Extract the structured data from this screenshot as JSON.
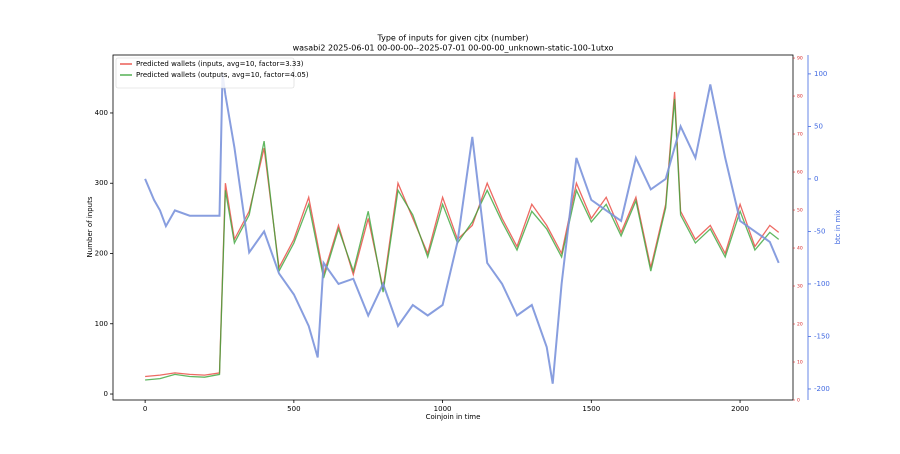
{
  "chart_data": {
    "type": "line",
    "title": "Type of inputs for given cjtx (number)",
    "subtitle": "wasabi2 2025-06-01 00-00-00--2025-07-01 00-00-00_unknown-static-100-1utxo",
    "x_label": "Coinjoin in time",
    "y_label": "Number of inputs",
    "y2_label": "btc in mix",
    "xlim": [
      -108,
      2178
    ],
    "xticks": [
      0,
      500,
      1000,
      1500,
      2000
    ],
    "ylim": [
      -8.5,
      482.5
    ],
    "yticks": [
      0,
      100,
      200,
      300,
      400
    ],
    "y2lim": [
      -210.5,
      118
    ],
    "y2ticks": [
      -200,
      -150,
      -100,
      -50,
      0,
      50,
      100
    ],
    "y3lim": [
      0,
      90.8
    ],
    "y3ticks": [
      0,
      10,
      20,
      30,
      40,
      50,
      60,
      70,
      80,
      90
    ],
    "y3color": "#d62728",
    "y2color": "#4169e1",
    "legend": "upper left",
    "series": [
      {
        "name": "Predicted wallets (inputs, avg=10, factor=3.33)",
        "color": "#e8453c",
        "x": [
          0,
          50,
          100,
          150,
          200,
          250,
          270,
          300,
          350,
          400,
          450,
          500,
          550,
          600,
          650,
          700,
          750,
          800,
          850,
          900,
          950,
          1000,
          1050,
          1100,
          1150,
          1200,
          1250,
          1300,
          1350,
          1400,
          1450,
          1500,
          1550,
          1600,
          1650,
          1700,
          1750,
          1780,
          1800,
          1850,
          1900,
          1950,
          2000,
          2050,
          2100,
          2130
        ],
        "values": [
          25,
          27,
          30,
          28,
          27,
          30,
          300,
          220,
          260,
          350,
          180,
          220,
          280,
          170,
          240,
          170,
          250,
          150,
          300,
          250,
          200,
          280,
          220,
          240,
          300,
          250,
          210,
          270,
          240,
          200,
          300,
          250,
          280,
          230,
          280,
          180,
          270,
          430,
          260,
          220,
          240,
          200,
          270,
          210,
          240,
          230
        ]
      },
      {
        "name": "Predicted wallets (outputs, avg=10, factor=4.05)",
        "color": "#3aa53a",
        "x": [
          0,
          50,
          100,
          150,
          200,
          250,
          270,
          300,
          350,
          400,
          450,
          500,
          550,
          600,
          650,
          700,
          750,
          800,
          850,
          900,
          950,
          1000,
          1050,
          1100,
          1150,
          1200,
          1250,
          1300,
          1350,
          1400,
          1450,
          1500,
          1550,
          1600,
          1650,
          1700,
          1750,
          1780,
          1800,
          1850,
          1900,
          1950,
          2000,
          2050,
          2100,
          2130
        ],
        "values": [
          20,
          22,
          28,
          25,
          24,
          28,
          290,
          215,
          255,
          360,
          175,
          215,
          270,
          165,
          235,
          175,
          260,
          145,
          290,
          255,
          195,
          270,
          215,
          245,
          290,
          245,
          205,
          260,
          235,
          195,
          290,
          245,
          270,
          225,
          275,
          175,
          265,
          420,
          255,
          215,
          235,
          195,
          260,
          205,
          230,
          220
        ]
      },
      {
        "name": "btc in mix",
        "color": "#7b93dc",
        "axis": "y2",
        "x": [
          0,
          30,
          50,
          70,
          100,
          150,
          200,
          250,
          260,
          270,
          300,
          350,
          400,
          450,
          500,
          550,
          580,
          600,
          650,
          700,
          750,
          800,
          850,
          900,
          950,
          1000,
          1050,
          1100,
          1150,
          1200,
          1250,
          1300,
          1350,
          1370,
          1400,
          1450,
          1500,
          1550,
          1600,
          1650,
          1700,
          1750,
          1800,
          1850,
          1900,
          1950,
          2000,
          2050,
          2100,
          2130
        ],
        "values": [
          0,
          -20,
          -30,
          -45,
          -30,
          -35,
          -35,
          -35,
          100,
          80,
          30,
          -70,
          -50,
          -90,
          -110,
          -140,
          -170,
          -80,
          -100,
          -95,
          -130,
          -100,
          -140,
          -120,
          -130,
          -120,
          -60,
          40,
          -80,
          -100,
          -130,
          -120,
          -160,
          -195,
          -100,
          20,
          -20,
          -30,
          -40,
          20,
          -10,
          0,
          50,
          20,
          90,
          20,
          -40,
          -50,
          -60,
          -80
        ]
      }
    ]
  }
}
